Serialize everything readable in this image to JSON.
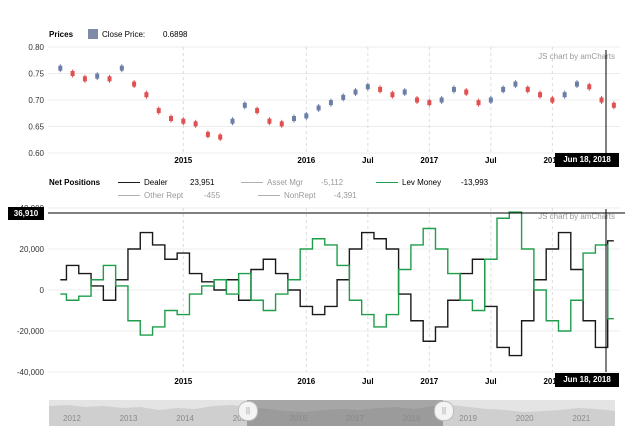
{
  "colors": {
    "dealer": "#1a1a1a",
    "lev_money": "#1e9e4a",
    "asset_mgr": "#b0b0b0",
    "other_rept": "#b0b0b0",
    "nonrept": "#b0b0b0",
    "candle_up": "#6b7ea8",
    "candle_down": "#e05050",
    "close_swatch": "#7d8aa8",
    "cursor_bg": "#000000",
    "navigator_fill": "#cfcfcf"
  },
  "prices_panel": {
    "title": "Prices",
    "close_label": "Close Price:",
    "close_value": "0.6898",
    "credit": "JS chart by amCharts",
    "cursor_date": "Jun 18, 2018"
  },
  "positions_panel": {
    "title": "Net Positions",
    "credit": "JS chart by amCharts",
    "cursor_date": "Jun 18, 2018",
    "cursor_value": "36,910",
    "legend": [
      {
        "name": "Dealer",
        "value": "23,951"
      },
      {
        "name": "Asset Mgr",
        "value": "-5,112"
      },
      {
        "name": "Lev Money",
        "value": "-13,993"
      },
      {
        "name": "Other Rept",
        "value": "-455"
      },
      {
        "name": "NonRept",
        "value": "-4,391"
      }
    ]
  },
  "navigator": {
    "years": [
      "2012",
      "2013",
      "2014",
      "2015",
      "2016",
      "2017",
      "2018",
      "2019",
      "2020",
      "2021"
    ],
    "grip_label": "||"
  },
  "chart_data": [
    {
      "type": "line",
      "title": "Prices",
      "ylim": [
        0.6,
        0.8
      ],
      "y_ticks": [
        "0.80",
        "0.75",
        "0.70",
        "0.65",
        "0.60"
      ],
      "x_ticks": [
        "2015",
        "2016",
        "Jul",
        "2017",
        "Jul",
        "2018"
      ],
      "series": [
        {
          "name": "Close Price",
          "x": [
            2014.0,
            2014.1,
            2014.2,
            2014.3,
            2014.4,
            2014.5,
            2014.6,
            2014.7,
            2014.8,
            2014.9,
            2015.0,
            2015.1,
            2015.2,
            2015.3,
            2015.4,
            2015.5,
            2015.6,
            2015.7,
            2015.8,
            2015.9,
            2016.0,
            2016.1,
            2016.2,
            2016.3,
            2016.4,
            2016.5,
            2016.6,
            2016.7,
            2016.8,
            2016.9,
            2017.0,
            2017.1,
            2017.2,
            2017.3,
            2017.4,
            2017.5,
            2017.6,
            2017.7,
            2017.8,
            2017.9,
            2018.0,
            2018.1,
            2018.2,
            2018.3,
            2018.4,
            2018.5
          ],
          "values": [
            0.76,
            0.75,
            0.74,
            0.745,
            0.74,
            0.76,
            0.73,
            0.71,
            0.68,
            0.665,
            0.66,
            0.655,
            0.635,
            0.63,
            0.66,
            0.69,
            0.68,
            0.66,
            0.655,
            0.665,
            0.67,
            0.685,
            0.695,
            0.705,
            0.715,
            0.725,
            0.72,
            0.71,
            0.715,
            0.7,
            0.695,
            0.7,
            0.72,
            0.715,
            0.695,
            0.7,
            0.72,
            0.73,
            0.72,
            0.71,
            0.7,
            0.71,
            0.73,
            0.725,
            0.7,
            0.69
          ]
        }
      ]
    },
    {
      "type": "line",
      "title": "Net Positions",
      "ylim": [
        -40000,
        40000
      ],
      "y_ticks": [
        "40,000",
        "20,000",
        "0",
        "-20,000",
        "-40,000"
      ],
      "x_ticks": [
        "2015",
        "2016",
        "Jul",
        "2017",
        "Jul",
        "2018"
      ],
      "series": [
        {
          "name": "Dealer",
          "x": [
            2014.0,
            2014.1,
            2014.2,
            2014.3,
            2014.4,
            2014.5,
            2014.6,
            2014.7,
            2014.8,
            2014.9,
            2015.0,
            2015.1,
            2015.2,
            2015.3,
            2015.4,
            2015.5,
            2015.6,
            2015.7,
            2015.8,
            2015.9,
            2016.0,
            2016.1,
            2016.2,
            2016.3,
            2016.4,
            2016.5,
            2016.6,
            2016.7,
            2016.8,
            2016.9,
            2017.0,
            2017.1,
            2017.2,
            2017.3,
            2017.4,
            2017.5,
            2017.6,
            2017.7,
            2017.8,
            2017.9,
            2018.0,
            2018.1,
            2018.2,
            2018.3,
            2018.4,
            2018.5
          ],
          "values": [
            5000,
            12000,
            8000,
            2000,
            -5000,
            5000,
            20000,
            28000,
            22000,
            15000,
            18000,
            8000,
            4000,
            0,
            5000,
            -5000,
            10000,
            15000,
            8000,
            0,
            -8000,
            -12000,
            -8000,
            5000,
            20000,
            28000,
            25000,
            20000,
            -2000,
            -15000,
            -25000,
            -18000,
            -5000,
            8000,
            15000,
            -8000,
            -28000,
            -32000,
            -15000,
            5000,
            20000,
            28000,
            10000,
            -15000,
            -28000,
            24000
          ]
        },
        {
          "name": "Lev Money",
          "x": [
            2014.0,
            2014.1,
            2014.2,
            2014.3,
            2014.4,
            2014.5,
            2014.6,
            2014.7,
            2014.8,
            2014.9,
            2015.0,
            2015.1,
            2015.2,
            2015.3,
            2015.4,
            2015.5,
            2015.6,
            2015.7,
            2015.8,
            2015.9,
            2016.0,
            2016.1,
            2016.2,
            2016.3,
            2016.4,
            2016.5,
            2016.6,
            2016.7,
            2016.8,
            2016.9,
            2017.0,
            2017.1,
            2017.2,
            2017.3,
            2017.4,
            2017.5,
            2017.6,
            2017.7,
            2017.8,
            2017.9,
            2018.0,
            2018.1,
            2018.2,
            2018.3,
            2018.4,
            2018.5
          ],
          "values": [
            -2000,
            -5000,
            -3000,
            5000,
            12000,
            2000,
            -15000,
            -22000,
            -18000,
            -10000,
            -12000,
            -2000,
            2000,
            5000,
            -2000,
            8000,
            -5000,
            -10000,
            -2000,
            5000,
            20000,
            25000,
            22000,
            12000,
            -5000,
            -12000,
            -18000,
            -12000,
            10000,
            22000,
            30000,
            20000,
            8000,
            -5000,
            -10000,
            15000,
            35000,
            38000,
            20000,
            0,
            -15000,
            -20000,
            -5000,
            18000,
            22000,
            -14000
          ]
        }
      ]
    }
  ]
}
